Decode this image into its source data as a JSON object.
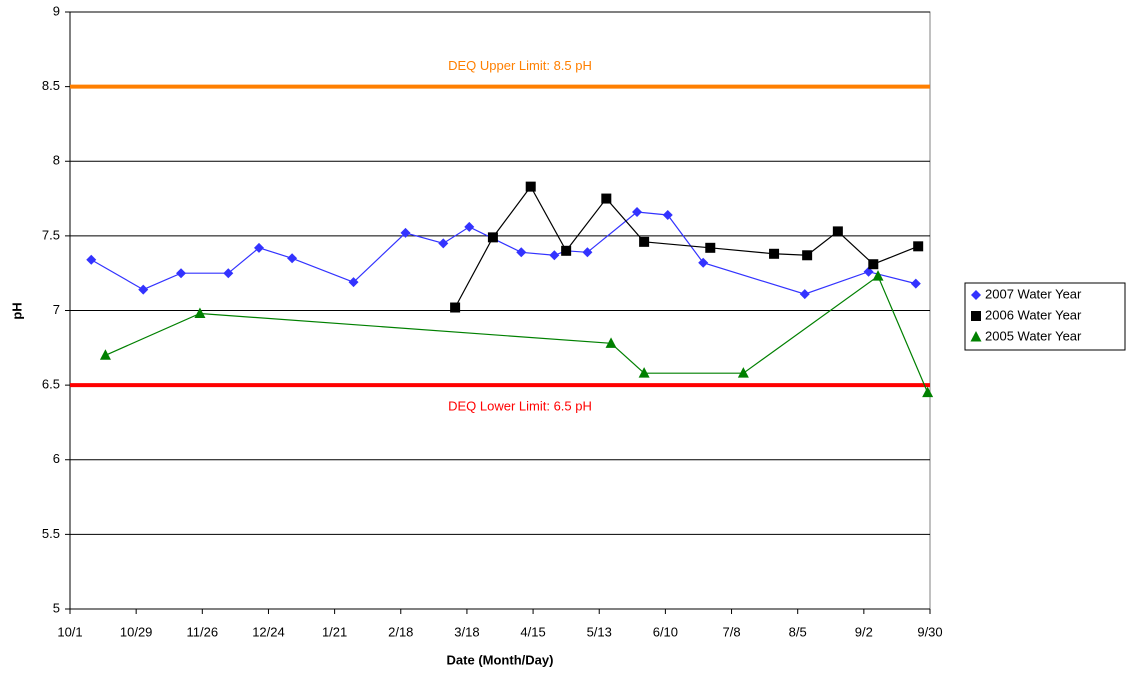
{
  "chart_data": {
    "type": "line",
    "xlabel": "Date (Month/Day)",
    "ylabel": "pH",
    "xlim": [
      0,
      364
    ],
    "ylim": [
      5,
      9
    ],
    "xticks": [
      {
        "value": 0,
        "label": "10/1"
      },
      {
        "value": 28,
        "label": "10/29"
      },
      {
        "value": 56,
        "label": "11/26"
      },
      {
        "value": 84,
        "label": "12/24"
      },
      {
        "value": 112,
        "label": "1/21"
      },
      {
        "value": 140,
        "label": "2/18"
      },
      {
        "value": 168,
        "label": "3/18"
      },
      {
        "value": 196,
        "label": "4/15"
      },
      {
        "value": 224,
        "label": "5/13"
      },
      {
        "value": 252,
        "label": "6/10"
      },
      {
        "value": 280,
        "label": "7/8"
      },
      {
        "value": 308,
        "label": "8/5"
      },
      {
        "value": 336,
        "label": "9/2"
      },
      {
        "value": 364,
        "label": "9/30"
      }
    ],
    "yticks": [
      5,
      5.5,
      6,
      6.5,
      7,
      7.5,
      8,
      8.5,
      9
    ],
    "grid": true,
    "legend": "right",
    "reference_lines": [
      {
        "label": "DEQ Upper Limit: 8.5 pH",
        "value": 8.5,
        "color": "#ff7f00"
      },
      {
        "label": "DEQ Lower Limit: 6.5 pH",
        "value": 6.5,
        "color": "#ff0000"
      }
    ],
    "series": [
      {
        "name": "2007 Water Year",
        "color": "#3333ff",
        "marker": "diamond",
        "x": [
          9,
          31,
          47,
          67,
          80,
          94,
          120,
          142,
          158,
          169,
          191,
          205,
          210,
          219,
          240,
          253,
          268,
          311,
          338,
          358
        ],
        "values": [
          7.34,
          7.14,
          7.25,
          7.25,
          7.42,
          7.35,
          7.19,
          7.52,
          7.45,
          7.56,
          7.39,
          7.37,
          7.4,
          7.39,
          7.66,
          7.64,
          7.32,
          7.11,
          7.26,
          7.18
        ]
      },
      {
        "name": "2006 Water Year",
        "color": "#000000",
        "marker": "square",
        "x": [
          163,
          179,
          195,
          210,
          227,
          243,
          271,
          298,
          312,
          325,
          340,
          359
        ],
        "values": [
          7.02,
          7.49,
          7.83,
          7.4,
          7.75,
          7.46,
          7.42,
          7.38,
          7.37,
          7.53,
          7.31,
          7.43
        ]
      },
      {
        "name": "2005 Water Year",
        "color": "#008000",
        "marker": "triangle",
        "x": [
          15,
          55,
          229,
          243,
          285,
          342,
          363
        ],
        "values": [
          6.7,
          6.98,
          6.78,
          6.58,
          6.58,
          7.23,
          6.45
        ]
      }
    ]
  }
}
